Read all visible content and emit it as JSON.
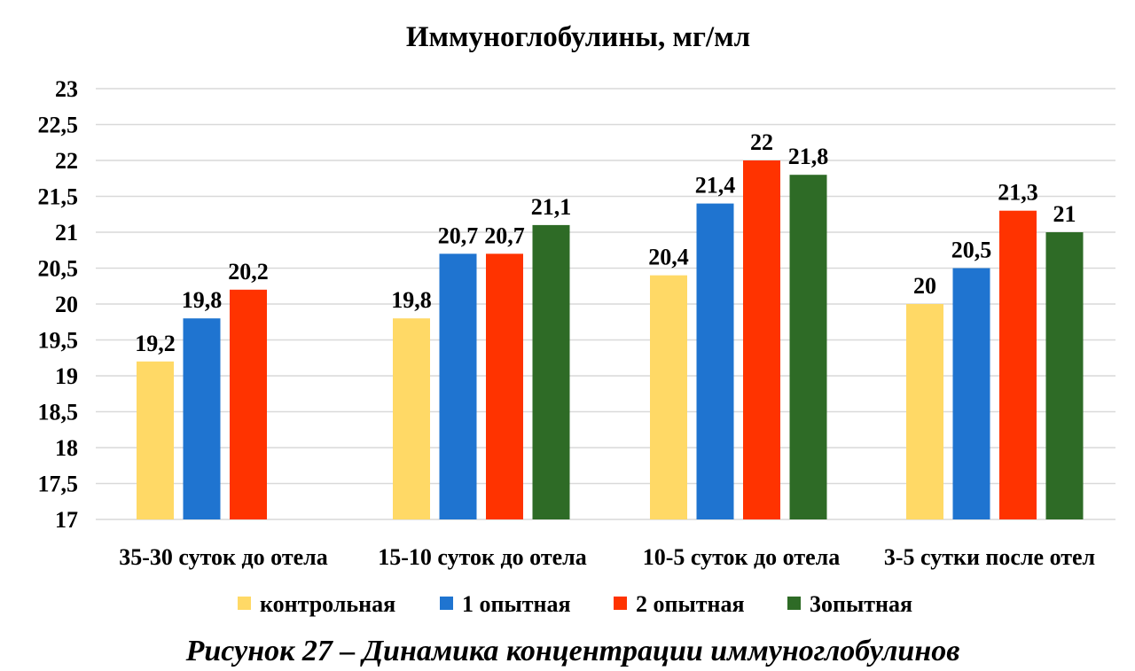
{
  "chart_data": {
    "type": "bar",
    "title": "Иммуноглобулины, мг/мл",
    "xlabel": "",
    "ylabel": "",
    "ylim": [
      17,
      23
    ],
    "yticks": [
      "17",
      "17,5",
      "18",
      "18,5",
      "19",
      "19,5",
      "20",
      "20,5",
      "21",
      "21,5",
      "22",
      "22,5",
      "23"
    ],
    "ytick_values": [
      17,
      17.5,
      18,
      18.5,
      19,
      19.5,
      20,
      20.5,
      21,
      21.5,
      22,
      22.5,
      23
    ],
    "grid": true,
    "legend_position": "bottom",
    "categories": [
      "35-30 суток до отела",
      "15-10 суток до отела",
      "10-5 суток до отела",
      "3-5 сутки после отел"
    ],
    "series": [
      {
        "name": "контрольная",
        "color": "#FFD966",
        "values": [
          19.2,
          19.8,
          20.4,
          20
        ],
        "labels": [
          "19,2",
          "19,8",
          "20,4",
          "20"
        ]
      },
      {
        "name": "1 опытная",
        "color": "#1F74D0",
        "values": [
          19.8,
          20.7,
          21.4,
          20.5
        ],
        "labels": [
          "19,8",
          "20,7",
          "21,4",
          "20,5"
        ]
      },
      {
        "name": "2 опытная",
        "color": "#FF3300",
        "values": [
          20.2,
          20.7,
          22,
          21.3
        ],
        "labels": [
          "20,2",
          "20,7",
          "22",
          "21,3"
        ]
      },
      {
        "name": "3опытная",
        "color": "#2E6B26",
        "values": [
          null,
          21.1,
          21.8,
          21
        ],
        "labels": [
          "",
          "21,1",
          "21,8",
          "21"
        ]
      }
    ]
  },
  "caption": "Рисунок 27 – Динамика концентрации иммуноглобулинов"
}
